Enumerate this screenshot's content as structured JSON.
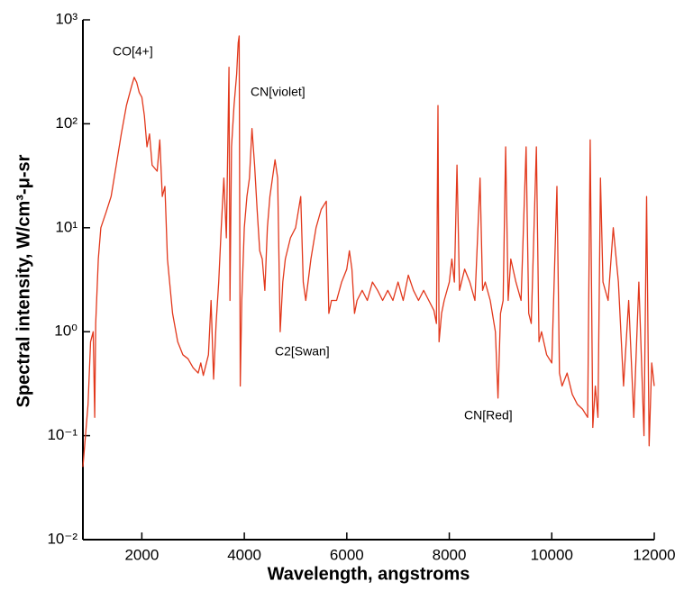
{
  "chart_data": {
    "type": "line",
    "log_y": true,
    "color": "#e2381c",
    "x_label": "Wavelength, angstroms",
    "y_label": "Spectral intensity, W/cm³-μ-sr",
    "annotations": [
      "CO[4+]",
      "CN[violet]",
      "C2[Swan]",
      "CN[Red]"
    ],
    "xlim": [
      850,
      12000
    ],
    "xticks": [
      2000,
      4000,
      6000,
      8000,
      10000,
      12000
    ],
    "ylim": [
      0.01,
      1000
    ],
    "yticks": [
      {
        "value": 0.01,
        "label": "10⁻²"
      },
      {
        "value": 0.1,
        "label": "10⁻¹"
      },
      {
        "value": 1,
        "label": "10⁰"
      },
      {
        "value": 10,
        "label": "10¹"
      },
      {
        "value": 100,
        "label": "10²"
      },
      {
        "value": 1000,
        "label": "10³"
      }
    ],
    "x": [
      850,
      950,
      1000,
      1050,
      1080,
      1100,
      1150,
      1200,
      1300,
      1400,
      1500,
      1600,
      1700,
      1800,
      1850,
      1900,
      1950,
      2000,
      2050,
      2100,
      2150,
      2200,
      2300,
      2350,
      2400,
      2450,
      2500,
      2600,
      2700,
      2800,
      2900,
      3000,
      3100,
      3150,
      3200,
      3300,
      3350,
      3400,
      3450,
      3500,
      3550,
      3600,
      3650,
      3700,
      3720,
      3750,
      3800,
      3850,
      3880,
      3900,
      3920,
      3950,
      4000,
      4050,
      4100,
      4150,
      4200,
      4250,
      4300,
      4350,
      4400,
      4450,
      4500,
      4600,
      4650,
      4700,
      4750,
      4800,
      4900,
      5000,
      5100,
      5150,
      5200,
      5300,
      5400,
      5500,
      5600,
      5650,
      5700,
      5800,
      5900,
      6000,
      6050,
      6100,
      6150,
      6200,
      6300,
      6400,
      6500,
      6600,
      6700,
      6800,
      6900,
      7000,
      7100,
      7200,
      7300,
      7400,
      7500,
      7600,
      7700,
      7750,
      7780,
      7800,
      7850,
      7900,
      8000,
      8050,
      8100,
      8150,
      8200,
      8300,
      8400,
      8500,
      8600,
      8650,
      8700,
      8800,
      8900,
      8950,
      9000,
      9050,
      9100,
      9150,
      9200,
      9300,
      9400,
      9500,
      9550,
      9600,
      9700,
      9750,
      9800,
      9900,
      10000,
      10100,
      10150,
      10200,
      10300,
      10400,
      10500,
      10600,
      10700,
      10750,
      10800,
      10850,
      10900,
      10950,
      11000,
      11100,
      11200,
      11300,
      11400,
      11500,
      11600,
      11700,
      11800,
      11850,
      11900,
      11950,
      12000
    ],
    "values": [
      0.05,
      0.2,
      0.8,
      1.0,
      0.15,
      1.2,
      5,
      10,
      14,
      20,
      40,
      80,
      150,
      230,
      280,
      250,
      200,
      180,
      120,
      60,
      80,
      40,
      35,
      70,
      20,
      25,
      5,
      1.5,
      0.8,
      0.6,
      0.55,
      0.45,
      0.4,
      0.5,
      0.38,
      0.6,
      2,
      0.35,
      1.2,
      3,
      10,
      30,
      8,
      350,
      2,
      60,
      150,
      300,
      600,
      700,
      0.3,
      2,
      10,
      20,
      30,
      90,
      40,
      15,
      6,
      5,
      2.5,
      10,
      20,
      45,
      30,
      1,
      3,
      5,
      8,
      10,
      20,
      3,
      2,
      5,
      10,
      15,
      18,
      1.5,
      2,
      2,
      3,
      4,
      6,
      4,
      1.5,
      2,
      2.5,
      2,
      3,
      2.5,
      2,
      2.5,
      2,
      3,
      2,
      3.5,
      2.5,
      2,
      2.5,
      2,
      1.6,
      1.2,
      150,
      0.8,
      1.5,
      2,
      3,
      5,
      3,
      40,
      2.5,
      4,
      3,
      2,
      30,
      2.5,
      3,
      2,
      1,
      0.23,
      1.5,
      2,
      60,
      2,
      5,
      3,
      2,
      60,
      1.5,
      1.2,
      60,
      0.8,
      1,
      0.6,
      0.5,
      25,
      0.4,
      0.3,
      0.4,
      0.25,
      0.2,
      0.18,
      0.15,
      70,
      0.12,
      0.3,
      0.15,
      30,
      3,
      2,
      10,
      3,
      0.3,
      2,
      0.15,
      3,
      0.1,
      20,
      0.08,
      0.5,
      0.3
    ]
  }
}
